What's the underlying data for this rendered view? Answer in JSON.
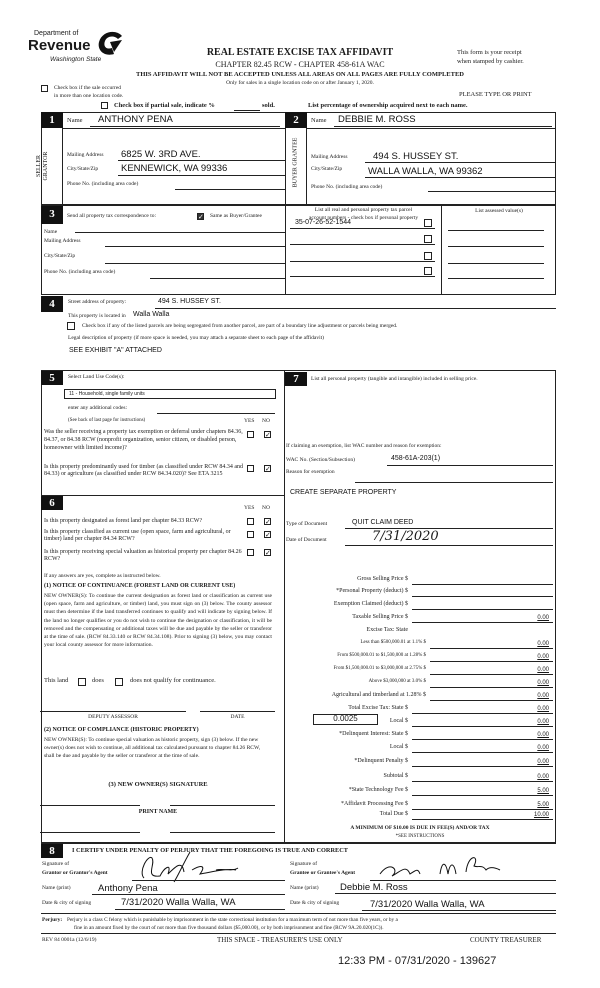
{
  "header": {
    "logo_dept": "Department of",
    "logo_name": "Revenue",
    "logo_state": "Washington State",
    "title": "REAL ESTATE EXCISE TAX AFFIDAVIT",
    "subtitle": "CHAPTER 82.45 RCW - CHAPTER 458-61A WAC",
    "warning": "THIS AFFIDAVIT WILL NOT BE ACCEPTED UNLESS ALL AREAS ON ALL PAGES ARE FULLY COMPLETED",
    "note": "Only for sales in a single location code on or after January 1, 2020.",
    "receipt_1": "This form is your receipt",
    "receipt_2": "when stamped by cashier.",
    "multi_loc_1": "Check box if the sale occurred",
    "multi_loc_2": "in more than one location code.",
    "type_print": "PLEASE TYPE OR PRINT",
    "partial_label": "Check box if partial sale, indicate %",
    "partial_sold": "sold.",
    "ownership_note": "List percentage of ownership acquired next to each name."
  },
  "seller": {
    "num": "1",
    "side": "SELLER GRANTOR",
    "name_label": "Name",
    "name": "ANTHONY PENA",
    "mail_label": "Mailing Address",
    "mail": "6825 W. 3RD AVE.",
    "city_label": "City/State/Zip",
    "city": "KENNEWICK, WA 99336",
    "phone_label": "Phone No. (including area code)"
  },
  "buyer": {
    "num": "2",
    "side": "BUYER GRANTEE",
    "name_label": "Name",
    "name": "DEBBIE M. ROSS",
    "mail_label": "Mailing Address",
    "mail": "494 S. HUSSEY ST.",
    "city_label": "City/State/Zip",
    "city": "WALLA WALLA, WA 99362",
    "phone_label": "Phone No. (including area code)"
  },
  "section3": {
    "num": "3",
    "send_label": "Send all property tax correspondence to:",
    "same_label": "Same as Buyer/Grantee",
    "same_checked": true,
    "name_label": "Name",
    "mail_label": "Mailing Address",
    "city_label": "City/State/Zip",
    "phone_label": "Phone No. (including area code)",
    "parcel_header_1": "List all real and personal property tax parcel",
    "parcel_header_2": "account numbers - check box if personal property",
    "assessed_header": "List assessed value(s)",
    "parcels": [
      "35-07-26-52-1544",
      "",
      "",
      ""
    ]
  },
  "section4": {
    "num": "4",
    "street_label": "Street address of property:",
    "street": "494 S. HUSSEY ST.",
    "located_label": "This property is located in",
    "located": "Walla Walla",
    "segregated_label": "Check box if any of the listed parcels are being segregated from another parcel, are part of a boundary line adjustment or parcels being merged.",
    "legal_label": "Legal description of property (if more space is needed, you may attach a separate sheet to each page of the affidavit)",
    "legal": "SEE EXHIBIT \"A\" ATTACHED"
  },
  "section5": {
    "num": "5",
    "label": "Select Land Use Code(s):",
    "code": "11 - Household, single family units",
    "additional_label": "enter any additional codes:",
    "see_back": "(See back of last page for instructions)",
    "yes": "YES",
    "no": "NO",
    "q1": "Was the seller receiving a property tax exemption or deferral under chapters 84.36, 84.37, or 84.38 RCW (nonprofit organization, senior citizen, or disabled person, homeowner with limited income)?",
    "q2": "Is this property predominantly used for timber (as classified under RCW 84.34 and 84.33) or agriculture (as classified under RCW 84.34.020)? See ETA 3215"
  },
  "section6": {
    "num": "6",
    "yes": "YES",
    "no": "NO",
    "q1": "Is this property designated as forest land per chapter 84.33 RCW?",
    "q2": "Is this property classified as current use (open space, farm and agricultural, or timber) land per chapter 84.34 RCW?",
    "q3": "Is this property receiving special valuation as historical property per chapter 84.26 RCW?",
    "if_yes": "If any answers are yes, complete as instructed below.",
    "notice1_title": "(1) NOTICE OF CONTINUANCE (FOREST LAND OR CURRENT USE)",
    "notice1_body": "NEW OWNER(S): To continue the current designation as forest land or classification as current use (open space, farm and agriculture, or timber) land, you must sign on (3) below. The county assessor must then determine if the land transferred continues to qualify and will indicate by signing below. If the land no longer qualifies or you do not wish to continue the designation or classification, it will be removed and the compensating or additional taxes will be due and payable by the seller or transferor at the time of sale. (RCW 84.33.140 or RCW 84.34.108). Prior to signing (3) below, you may contact your local county assessor for more information.",
    "this_land": "This land",
    "does": "does",
    "does_not": "does not qualify for continuance.",
    "deputy": "DEPUTY ASSESSOR",
    "date": "DATE",
    "notice2_title": "(2) NOTICE OF COMPLIANCE (HISTORIC PROPERTY)",
    "notice2_body": "NEW OWNER(S): To continue special valuation as historic property, sign (3) below. If the new owner(s) does not wish to continue, all additional tax calculated pursuant to chapter 84.26 RCW, shall be due and payable by the seller or transferor at the time of sale.",
    "sig_title": "(3) NEW OWNER(S) SIGNATURE",
    "print_name": "PRINT NAME"
  },
  "section7": {
    "num": "7",
    "label": "List all personal property (tangible and intangible) included in selling price.",
    "exempt_label": "If claiming an exemption, list WAC number and reason for exemption:",
    "wac_label": "WAC No. (Section/Subsection)",
    "wac": "458-61A-203(1)",
    "reason_label": "Reason for exemption",
    "reason": "CREATE SEPARATE PROPERTY",
    "doctype_label": "Type of Document",
    "doctype": "QUIT CLAIM DEED",
    "docdate_label": "Date of Document",
    "docdate": "7/31/2020"
  },
  "tax": {
    "rows": [
      {
        "label": "Gross Selling Price  $",
        "value": ""
      },
      {
        "label": "*Personal Property (deduct)  $",
        "value": ""
      },
      {
        "label": "Exemption Claimed (deduct)  $",
        "value": ""
      },
      {
        "label": "Taxable Selling Price  $",
        "value": "0.00"
      },
      {
        "label": "Excise Tax: State",
        "value": ""
      },
      {
        "label": "Less than $500,000.01 at 1.1%  $",
        "value": "0.00"
      },
      {
        "label": "From $500,000.01 to $1,500,000 at 1.28%  $",
        "value": "0.00"
      },
      {
        "label": "From $1,500,000.01 to $3,000,000 at 2.75%  $",
        "value": "0.00"
      },
      {
        "label": "Above $3,000,000 at 3.0%  $",
        "value": "0.00"
      },
      {
        "label": "Agricultural and timberland at 1.28%  $",
        "value": "0.00"
      },
      {
        "label": "Total Excise Tax: State  $",
        "value": "0.00"
      },
      {
        "label": "Local  $",
        "value": "0.00"
      },
      {
        "label": "*Delinquent Interest: State  $",
        "value": "0.00"
      },
      {
        "label": "Local  $",
        "value": "0.00"
      },
      {
        "label": "*Delinquent Penalty  $",
        "value": "0.00"
      },
      {
        "label": "Subtotal  $",
        "value": "0.00"
      },
      {
        "label": "*State Technology Fee  $",
        "value": "5.00"
      },
      {
        "label": "*Affidavit Processing Fee  $",
        "value": "5.00"
      },
      {
        "label": "Total Due  $",
        "value": "10.00"
      }
    ],
    "local_rate": "0.0025",
    "minimum": "A MINIMUM OF $10.00 IS DUE IN FEE(S) AND/OR TAX",
    "see_instr": "*SEE INSTRUCTIONS"
  },
  "section8": {
    "num": "8",
    "certify": "I CERTIFY UNDER PENALTY OF PERJURY THAT THE FOREGOING IS TRUE AND CORRECT",
    "grantor_sig_1": "Signature of",
    "grantor_sig_2": "Grantor or Grantor's Agent",
    "grantee_sig_1": "Signature of",
    "grantee_sig_2": "Grantee or Grantee's Agent",
    "name_label": "Name (print)",
    "grantor_name": "Anthony Pena",
    "grantee_name": "Debbie M. Ross",
    "date_label": "Date & city of signing",
    "grantor_date": "7/31/2020  Walla Walla, WA",
    "grantee_date": "7/31/2020  Walla Walla, WA",
    "perjury_label": "Perjury:",
    "perjury_1": "Perjury is a class C felony which is punishable by imprisonment in the state correctional institution for a maximum term of not more than five years, or by a",
    "perjury_2": "fine in an amount fixed by the court of not more than five thousand dollars ($5,000.00), or by both imprisonment and fine (RCW 9A.20.020(1C))."
  },
  "footer": {
    "form_no": "REV 84 0001a (12/6/19)",
    "treasurer_use": "THIS SPACE - TREASURER'S USE ONLY",
    "county": "COUNTY TREASURER",
    "stamp": "12:33 PM - 07/31/2020 - 139627"
  }
}
